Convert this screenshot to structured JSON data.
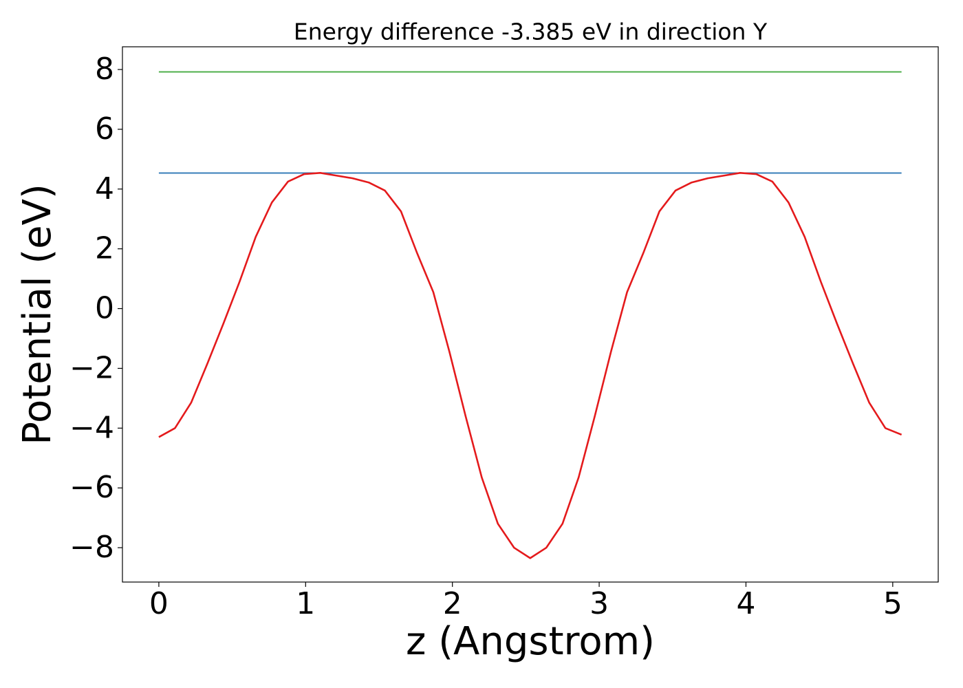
{
  "chart_data": {
    "type": "line",
    "title": "Energy difference -3.385 eV in direction Y",
    "xlabel": "z (Angstrom)",
    "ylabel": "Potential (eV)",
    "xlim": [
      -0.248,
      5.31
    ],
    "ylim": [
      -9.15,
      8.76
    ],
    "xticks": [
      0,
      1,
      2,
      3,
      4,
      5
    ],
    "yticks": [
      {
        "value": -8,
        "label": "−8"
      },
      {
        "value": -6,
        "label": "−6"
      },
      {
        "value": -4,
        "label": "−4"
      },
      {
        "value": -2,
        "label": "−2"
      },
      0,
      2,
      4,
      6,
      8
    ],
    "grid": false,
    "series": [
      {
        "color": "#e41a1c",
        "x": [
          0,
          0.11,
          0.22,
          0.33,
          0.44,
          0.55,
          0.66,
          0.77,
          0.88,
          0.99,
          1.1,
          1.21,
          1.32,
          1.43,
          1.54,
          1.65,
          1.76,
          1.87,
          1.98,
          2.09,
          2.2,
          2.31,
          2.42,
          2.53,
          2.64,
          2.75,
          2.86,
          2.97,
          3.08,
          3.19,
          3.3,
          3.41,
          3.52,
          3.63,
          3.74,
          3.85,
          3.96,
          4.07,
          4.18,
          4.29,
          4.4,
          4.51,
          4.62,
          4.73,
          4.84,
          4.95,
          5.06
        ],
        "values": [
          -4.3,
          -4.0,
          -3.15,
          -1.85,
          -0.5,
          0.9,
          2.4,
          3.55,
          4.25,
          4.5,
          4.54,
          4.45,
          4.36,
          4.22,
          3.95,
          3.25,
          1.85,
          0.55,
          -1.45,
          -3.6,
          -5.65,
          -7.2,
          -8.0,
          -8.35,
          -8.0,
          -7.2,
          -5.65,
          -3.6,
          -1.45,
          0.55,
          1.85,
          3.25,
          3.95,
          4.22,
          4.36,
          4.45,
          4.54,
          4.5,
          4.25,
          3.55,
          2.4,
          0.9,
          -0.5,
          -1.85,
          -3.15,
          -4.0,
          -4.22
        ]
      },
      {
        "color": "#377eb8",
        "x": [
          0,
          5.06
        ],
        "values": [
          4.535,
          4.535
        ]
      },
      {
        "color": "#4daf4a",
        "x": [
          0,
          5.06
        ],
        "values": [
          7.92,
          7.92
        ]
      }
    ]
  }
}
